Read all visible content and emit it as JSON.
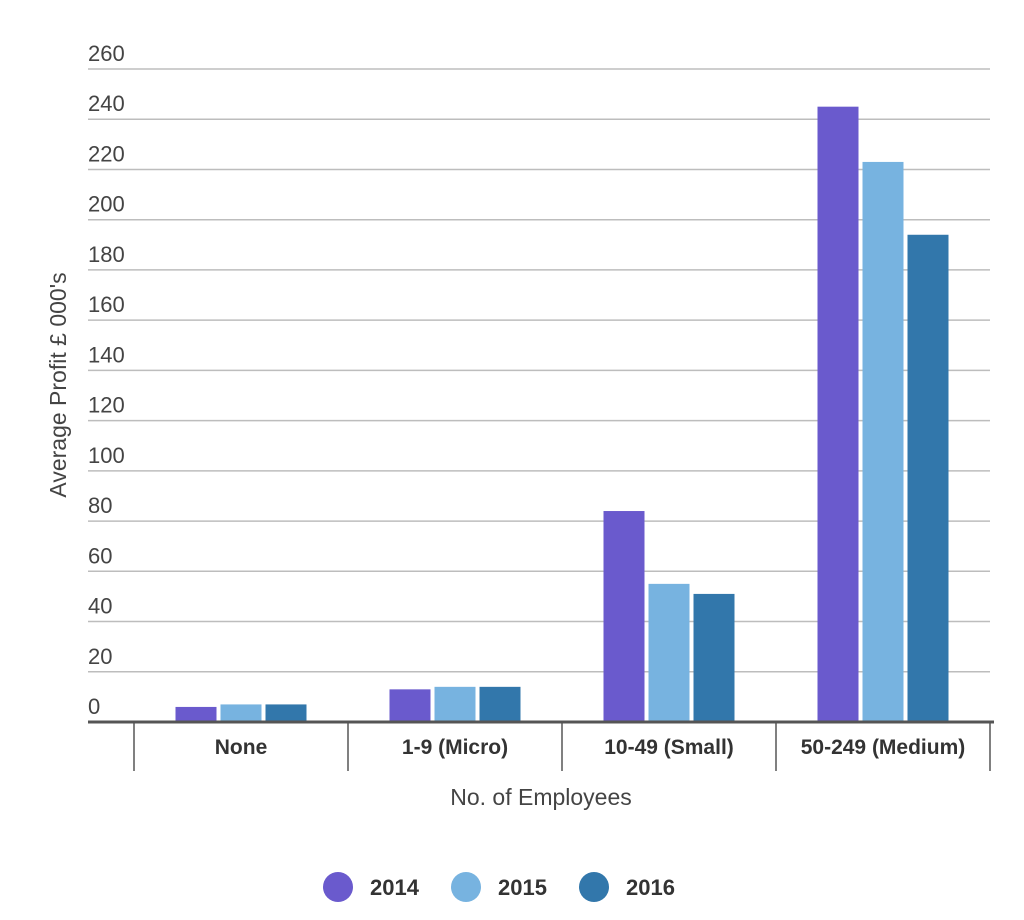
{
  "chart_data": {
    "type": "bar",
    "categories": [
      "None",
      "1-9 (Micro)",
      "10-49 (Small)",
      "50-249 (Medium)"
    ],
    "series": [
      {
        "name": "2014",
        "color": "#6a5acd",
        "values": [
          6,
          13,
          84,
          245
        ]
      },
      {
        "name": "2015",
        "color": "#77b3e0",
        "values": [
          7,
          14,
          55,
          223
        ]
      },
      {
        "name": "2016",
        "color": "#3277ab",
        "values": [
          7,
          14,
          51,
          194
        ]
      }
    ],
    "title": "",
    "xlabel": "No. of Employees",
    "ylabel": "Average Profit £ 000's",
    "ylim": [
      0,
      260
    ],
    "yticks": [
      0,
      20,
      40,
      60,
      80,
      100,
      120,
      140,
      160,
      180,
      200,
      220,
      240,
      260
    ],
    "grid": true,
    "legend_position": "bottom"
  }
}
